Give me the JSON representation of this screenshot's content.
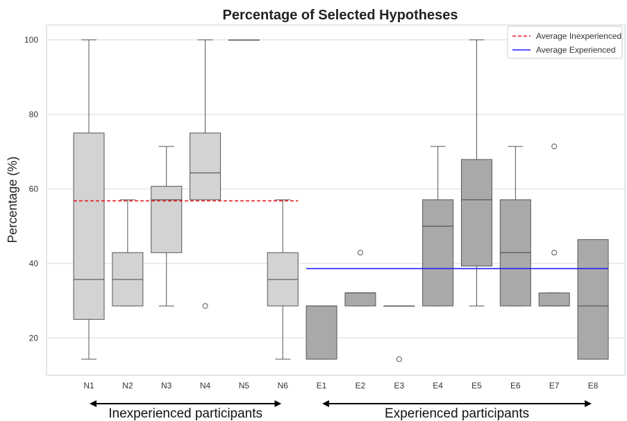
{
  "chart_data": {
    "type": "box",
    "title": "Percentage of Selected Hypotheses",
    "ylabel": "Percentage (%)",
    "xlabel": "",
    "ylim": [
      10,
      104
    ],
    "yticks": [
      20,
      40,
      60,
      80,
      100
    ],
    "grid": "horizontal",
    "legend_position": "top-right",
    "categories": [
      "N1",
      "N2",
      "N3",
      "N4",
      "N5",
      "N6",
      "E1",
      "E2",
      "E3",
      "E4",
      "E5",
      "E6",
      "E7",
      "E8"
    ],
    "boxes": [
      {
        "label": "N1",
        "group": "inexperienced",
        "min": 14.3,
        "q1": 25.0,
        "median": 35.7,
        "q3": 75.0,
        "max": 100,
        "outliers": []
      },
      {
        "label": "N2",
        "group": "inexperienced",
        "min": 28.6,
        "q1": 28.6,
        "median": 35.7,
        "q3": 42.9,
        "max": 57.1,
        "outliers": []
      },
      {
        "label": "N3",
        "group": "inexperienced",
        "min": 28.6,
        "q1": 42.9,
        "median": 57.1,
        "q3": 60.7,
        "max": 71.4,
        "outliers": []
      },
      {
        "label": "N4",
        "group": "inexperienced",
        "min": 57.1,
        "q1": 57.1,
        "median": 64.3,
        "q3": 75.0,
        "max": 100,
        "outliers": [
          28.6
        ]
      },
      {
        "label": "N5",
        "group": "inexperienced",
        "min": 100,
        "q1": 100,
        "median": 100,
        "q3": 100,
        "max": 100,
        "outliers": []
      },
      {
        "label": "N6",
        "group": "inexperienced",
        "min": 14.3,
        "q1": 28.6,
        "median": 35.7,
        "q3": 42.9,
        "max": 57.1,
        "outliers": []
      },
      {
        "label": "E1",
        "group": "experienced",
        "min": 14.3,
        "q1": 14.3,
        "median": 28.6,
        "q3": 28.6,
        "max": 28.6,
        "outliers": []
      },
      {
        "label": "E2",
        "group": "experienced",
        "min": 28.6,
        "q1": 28.6,
        "median": 32.1,
        "q3": 32.1,
        "max": 32.1,
        "outliers": [
          42.9
        ]
      },
      {
        "label": "E3",
        "group": "experienced",
        "min": 28.6,
        "q1": 28.6,
        "median": 28.6,
        "q3": 28.6,
        "max": 28.6,
        "outliers": [
          14.3
        ]
      },
      {
        "label": "E4",
        "group": "experienced",
        "min": 28.6,
        "q1": 28.6,
        "median": 50.0,
        "q3": 57.1,
        "max": 71.4,
        "outliers": []
      },
      {
        "label": "E5",
        "group": "experienced",
        "min": 28.6,
        "q1": 39.3,
        "median": 57.1,
        "q3": 67.9,
        "max": 100,
        "outliers": []
      },
      {
        "label": "E6",
        "group": "experienced",
        "min": 28.6,
        "q1": 28.6,
        "median": 42.9,
        "q3": 57.1,
        "max": 71.4,
        "outliers": []
      },
      {
        "label": "E7",
        "group": "experienced",
        "min": 28.6,
        "q1": 28.6,
        "median": 28.6,
        "q3": 32.1,
        "max": 32.1,
        "outliers": [
          42.9,
          71.4
        ]
      },
      {
        "label": "E8",
        "group": "experienced",
        "min": 14.3,
        "q1": 14.3,
        "median": 28.6,
        "q3": 46.4,
        "max": 46.4,
        "outliers": []
      }
    ],
    "reference_lines": [
      {
        "name": "Average Inexperienced",
        "value": 56.8,
        "from": "N1",
        "to": "N6",
        "color": "#e41a1c",
        "style": "dashed"
      },
      {
        "name": "Average Experienced",
        "value": 38.6,
        "from": "E1",
        "to": "E8",
        "color": "#1f1fff",
        "style": "solid"
      }
    ],
    "colors": {
      "inexperienced_fill": "#d3d3d3",
      "experienced_fill": "#a9a9a9",
      "box_edge": "#555555",
      "grid": "#d9d9d9"
    },
    "group_labels": [
      {
        "text": "Inexperienced participants",
        "from": "N1",
        "to": "N6"
      },
      {
        "text": "Experienced participants",
        "from": "E1",
        "to": "E8"
      }
    ]
  }
}
